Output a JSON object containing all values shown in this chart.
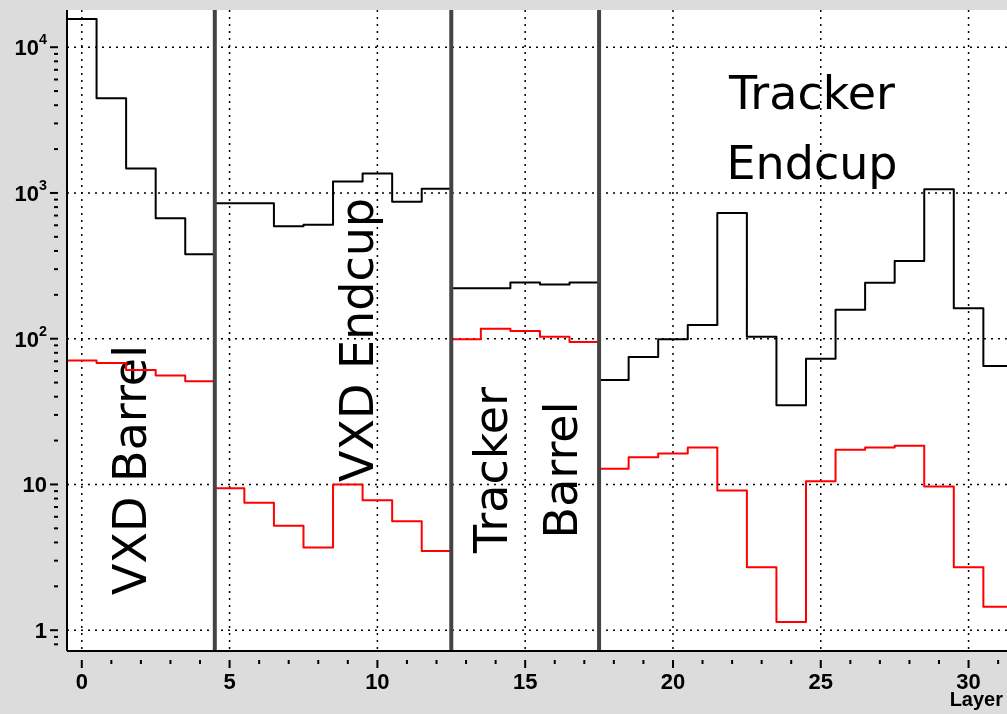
{
  "chart_data": {
    "type": "histogram",
    "xlabel": "Layer",
    "bins": [
      -0.5,
      0.5,
      1.5,
      2.5,
      3.5,
      4.5,
      5.5,
      6.5,
      7.5,
      8.5,
      9.5,
      10.5,
      11.5,
      12.5,
      13.5,
      14.5,
      15.5,
      16.5,
      17.5,
      18.5,
      19.5,
      20.5,
      21.5,
      22.5,
      23.5,
      24.5,
      25.5,
      26.5,
      27.5,
      28.5,
      29.5,
      30.5,
      31.5
    ],
    "series": [
      {
        "color": "#000000",
        "values": [
          15600,
          4470,
          1470,
          670,
          380,
          850,
          850,
          590,
          605,
          1200,
          1360,
          870,
          1070,
          222,
          222,
          243,
          235,
          243,
          52,
          75,
          99,
          124,
          730,
          103,
          35,
          73,
          158,
          242,
          341,
          1060,
          162,
          65
        ]
      },
      {
        "color": "#ff0000",
        "values": [
          71,
          68,
          61,
          56,
          51,
          9.4,
          7.5,
          5.2,
          3.7,
          10,
          7.8,
          5.6,
          3.5,
          99,
          117,
          113,
          103,
          95,
          12.8,
          15.4,
          16.3,
          17.9,
          9.1,
          2.7,
          1.14,
          10.5,
          17.3,
          17.9,
          18.4,
          9.7,
          2.7,
          1.45
        ]
      }
    ],
    "log": "y",
    "xlim": [
      -0.5,
      31.3
    ],
    "ylim": [
      0.72,
      18000
    ],
    "xticks": [
      0,
      {
        "value": 1,
        "label": null
      },
      {
        "value": 2,
        "label": null
      },
      {
        "value": 3,
        "label": null
      },
      {
        "value": 4,
        "label": null
      },
      5,
      {
        "value": 6,
        "label": null
      },
      {
        "value": 7,
        "label": null
      },
      {
        "value": 8,
        "label": null
      },
      {
        "value": 9,
        "label": null
      },
      10,
      {
        "value": 11,
        "label": null
      },
      {
        "value": 12,
        "label": null
      },
      {
        "value": 13,
        "label": null
      },
      {
        "value": 14,
        "label": null
      },
      15,
      {
        "value": 16,
        "label": null
      },
      {
        "value": 17,
        "label": null
      },
      {
        "value": 18,
        "label": null
      },
      {
        "value": 19,
        "label": null
      },
      20,
      {
        "value": 21,
        "label": null
      },
      {
        "value": 22,
        "label": null
      },
      {
        "value": 23,
        "label": null
      },
      {
        "value": 24,
        "label": null
      },
      25,
      {
        "value": 26,
        "label": null
      },
      {
        "value": 27,
        "label": null
      },
      {
        "value": 28,
        "label": null
      },
      {
        "value": 29,
        "label": null
      },
      30,
      {
        "value": 31,
        "label": null
      }
    ],
    "yticks": [
      {
        "value": 0.8,
        "label": null
      },
      {
        "value": 0.9,
        "label": null
      },
      1,
      {
        "value": 2,
        "label": null
      },
      {
        "value": 3,
        "label": null
      },
      {
        "value": 4,
        "label": null
      },
      {
        "value": 5,
        "label": null
      },
      {
        "value": 6,
        "label": null
      },
      {
        "value": 7,
        "label": null
      },
      {
        "value": 8,
        "label": null
      },
      {
        "value": 9,
        "label": null
      },
      10,
      {
        "value": 20,
        "label": null
      },
      {
        "value": 30,
        "label": null
      },
      {
        "value": 40,
        "label": null
      },
      {
        "value": 50,
        "label": null
      },
      {
        "value": 60,
        "label": null
      },
      {
        "value": 70,
        "label": null
      },
      {
        "value": 80,
        "label": null
      },
      {
        "value": 90,
        "label": null
      },
      {
        "value": 100,
        "label": "10$^{2}$"
      },
      {
        "value": 200,
        "label": null
      },
      {
        "value": 300,
        "label": null
      },
      {
        "value": 400,
        "label": null
      },
      {
        "value": 500,
        "label": null
      },
      {
        "value": 600,
        "label": null
      },
      {
        "value": 700,
        "label": null
      },
      {
        "value": 800,
        "label": null
      },
      {
        "value": 900,
        "label": null
      },
      {
        "value": 1000,
        "label": "10$^{3}$"
      },
      {
        "value": 2000,
        "label": null
      },
      {
        "value": 3000,
        "label": null
      },
      {
        "value": 4000,
        "label": null
      },
      {
        "value": 5000,
        "label": null
      },
      {
        "value": 6000,
        "label": null
      },
      {
        "value": 7000,
        "label": null
      },
      {
        "value": 8000,
        "label": null
      },
      {
        "value": 9000,
        "label": null
      },
      {
        "value": 10000,
        "label": "10$^{4}$"
      }
    ],
    "grid": true,
    "ref_lines": [
      {
        "axis": "x",
        "value": 4.5,
        "color": "#444444"
      },
      {
        "axis": "x",
        "value": 12.5,
        "color": "#444444"
      },
      {
        "axis": "x",
        "value": 17.5,
        "color": "#444444"
      }
    ],
    "annotations": [
      "VXD Barrel",
      "VXD Endcup",
      "Tracker Barrel",
      "Tracker Endcup"
    ]
  }
}
